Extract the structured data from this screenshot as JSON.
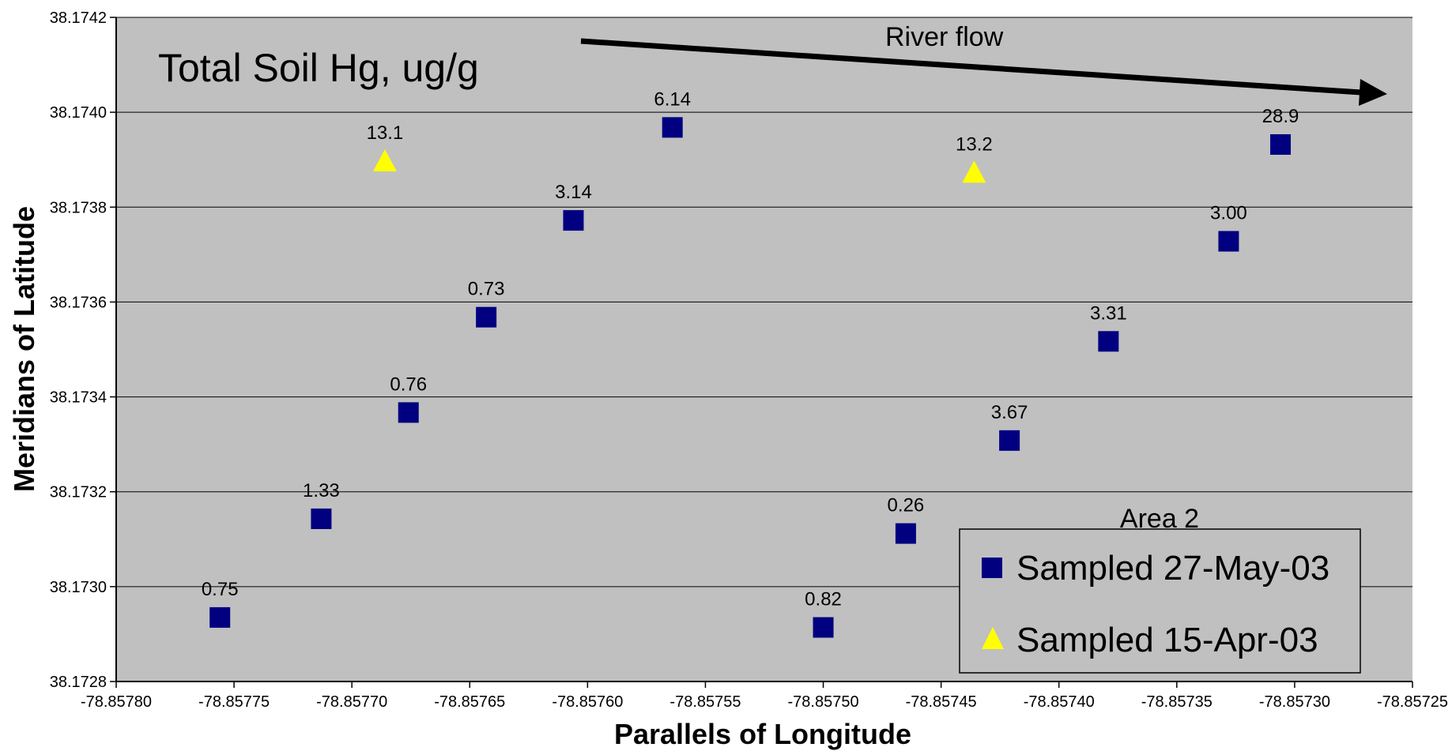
{
  "chart_data": {
    "type": "scatter",
    "title": "Total Soil Hg, ug/g",
    "xlabel": "Parallels of Longitude",
    "ylabel": "Meridians of Latitude",
    "xlim": [
      -78.8578,
      -78.85725
    ],
    "ylim": [
      38.1728,
      38.1742
    ],
    "x_ticks": [
      "-78.85780",
      "-78.85775",
      "-78.85770",
      "-78.85765",
      "-78.85760",
      "-78.85755",
      "-78.85750",
      "-78.85745",
      "-78.85740",
      "-78.85735",
      "-78.85730",
      "-78.85725"
    ],
    "y_ticks": [
      "38.1728",
      "38.1730",
      "38.1732",
      "38.1734",
      "38.1736",
      "38.1738",
      "38.1740",
      "38.1742"
    ],
    "grid": "horizontal",
    "legend_title": "Area 2",
    "legend_position": "bottom-right",
    "annotation": "River flow",
    "series": [
      {
        "name": "Sampled 27-May-03",
        "marker": "square",
        "color": "#000080",
        "points": [
          {
            "x": -78.857756,
            "y": 38.172935,
            "label": "0.75"
          },
          {
            "x": -78.857713,
            "y": 38.173143,
            "label": "1.33"
          },
          {
            "x": -78.857676,
            "y": 38.173367,
            "label": "0.76"
          },
          {
            "x": -78.857643,
            "y": 38.173568,
            "label": "0.73"
          },
          {
            "x": -78.857606,
            "y": 38.173772,
            "label": "3.14"
          },
          {
            "x": -78.857564,
            "y": 38.173968,
            "label": "6.14"
          },
          {
            "x": -78.8575,
            "y": 38.172914,
            "label": "0.82"
          },
          {
            "x": -78.857465,
            "y": 38.173112,
            "label": "0.26"
          },
          {
            "x": -78.857421,
            "y": 38.173308,
            "label": "3.67"
          },
          {
            "x": -78.857379,
            "y": 38.173517,
            "label": "3.31"
          },
          {
            "x": -78.857328,
            "y": 38.173728,
            "label": "3.00"
          },
          {
            "x": -78.857306,
            "y": 38.173932,
            "label": "28.9"
          }
        ]
      },
      {
        "name": "Sampled 15-Apr-03",
        "marker": "triangle",
        "color": "#FFFF00",
        "points": [
          {
            "x": -78.857686,
            "y": 38.173897,
            "label": "13.1"
          },
          {
            "x": -78.857436,
            "y": 38.173873,
            "label": "13.2"
          }
        ]
      }
    ]
  }
}
